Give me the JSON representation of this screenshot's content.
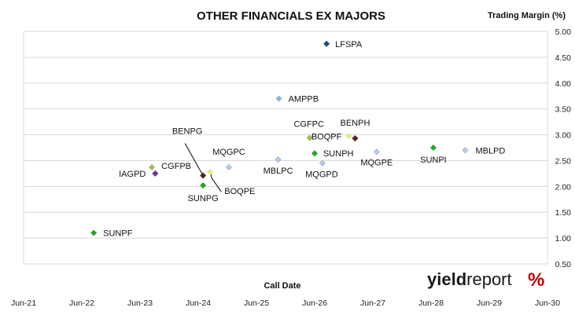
{
  "chart_data": {
    "type": "scatter",
    "title": "OTHER FINANCIALS EX MAJORS",
    "xlabel": "Call Date",
    "ylabel": "Trading Margin (%)",
    "xlim": [
      "2021-06-01",
      "2030-06-01"
    ],
    "ylim": [
      0.5,
      5.0
    ],
    "x_ticks": [
      "Jun-21",
      "Jun-22",
      "Jun-23",
      "Jun-24",
      "Jun-25",
      "Jun-26",
      "Jun-27",
      "Jun-28",
      "Jun-29",
      "Jun-30"
    ],
    "y_ticks": [
      "5.00",
      "4.50",
      "4.00",
      "3.50",
      "3.00",
      "2.50",
      "2.00",
      "1.50",
      "1.00",
      "0.50"
    ],
    "grid": true,
    "legend": "none",
    "points": [
      {
        "label": "LFSPA",
        "x": "2026-08-15",
        "y": 4.76,
        "color": "#1f4e79"
      },
      {
        "label": "AMPPB",
        "x": "2025-10-20",
        "y": 3.7,
        "color": "#8db3e2"
      },
      {
        "label": "CGFPC",
        "x": "2026-05-01",
        "y": 2.94,
        "color": "#9bbb59"
      },
      {
        "label": "BOQPF",
        "x": "2027-01-01",
        "y": 2.97,
        "color": "#e6e68a"
      },
      {
        "label": "BENPH",
        "x": "2027-02-10",
        "y": 2.93,
        "color": "#5c1f1f"
      },
      {
        "label": "SUNPH",
        "x": "2026-06-01",
        "y": 2.64,
        "color": "#2ca02c"
      },
      {
        "label": "MBLPC",
        "x": "2025-10-15",
        "y": 2.52,
        "color": "#b9cde5"
      },
      {
        "label": "MQGPD",
        "x": "2026-07-20",
        "y": 2.45,
        "color": "#b9cde5"
      },
      {
        "label": "MQGPE",
        "x": "2027-06-25",
        "y": 2.67,
        "color": "#b9cde5"
      },
      {
        "label": "SUNPI",
        "x": "2028-06-15",
        "y": 2.75,
        "color": "#2ca02c"
      },
      {
        "label": "MBLPD",
        "x": "2029-01-01",
        "y": 2.7,
        "color": "#b9cde5"
      },
      {
        "label": "MQGPC",
        "x": "2024-12-10",
        "y": 2.37,
        "color": "#b9cde5"
      },
      {
        "label": "BENPG",
        "x": "2024-07-01",
        "y": 2.21,
        "color": "#5c1f1f"
      },
      {
        "label": "BOQPE",
        "x": "2024-08-15",
        "y": 2.28,
        "color": "#e6e68a"
      },
      {
        "label": "SUNPG",
        "x": "2024-07-01",
        "y": 2.02,
        "color": "#2ca02c"
      },
      {
        "label": "CGFPB",
        "x": "2023-08-15",
        "y": 2.37,
        "color": "#9bbb59"
      },
      {
        "label": "IAGPD",
        "x": "2023-09-05",
        "y": 2.25,
        "color": "#7030a0"
      },
      {
        "label": "SUNPF",
        "x": "2022-08-15",
        "y": 1.1,
        "color": "#2ca02c"
      }
    ]
  },
  "brand": {
    "yield": "yield",
    "report": "report",
    "percent": "%"
  }
}
